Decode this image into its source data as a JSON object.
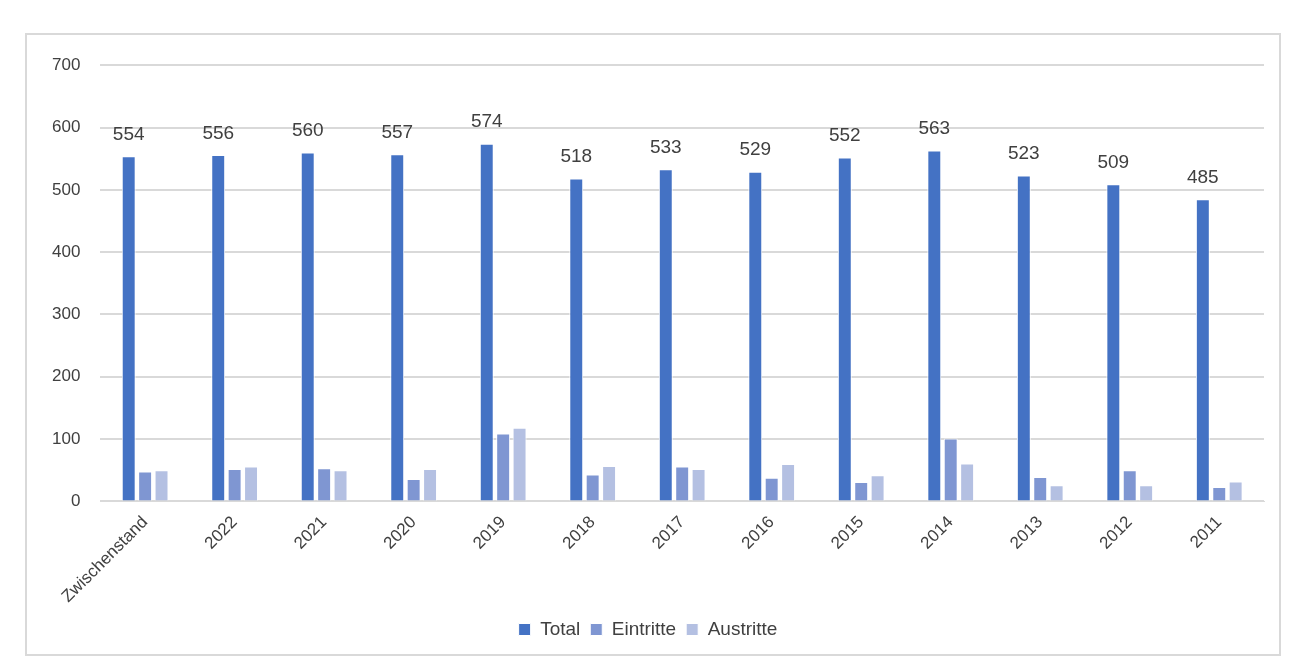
{
  "chart_data": {
    "type": "bar",
    "categories": [
      "Zwischenstand",
      "2022",
      "2021",
      "2020",
      "2019",
      "2018",
      "2017",
      "2016",
      "2015",
      "2014",
      "2013",
      "2012",
      "2011"
    ],
    "series": [
      {
        "name": "Total",
        "color": "#4472c4",
        "values": [
          554,
          556,
          560,
          557,
          574,
          518,
          533,
          529,
          552,
          563,
          523,
          509,
          485
        ],
        "value_labels": [
          "554",
          "556",
          "560",
          "557",
          "574",
          "518",
          "533",
          "529",
          "552",
          "563",
          "523",
          "509",
          "485"
        ]
      },
      {
        "name": "Eintritte",
        "color": "#7f96d2",
        "values": [
          48,
          52,
          53,
          36,
          109,
          43,
          56,
          38,
          31,
          101,
          39,
          50,
          23
        ]
      },
      {
        "name": "Austritte",
        "color": "#b4c0e2",
        "values": [
          50,
          56,
          50,
          52,
          118,
          57,
          52,
          60,
          42,
          61,
          26,
          26,
          32
        ]
      }
    ],
    "ylim": [
      0,
      700
    ],
    "yticks": [
      0,
      100,
      200,
      300,
      400,
      500,
      600,
      700
    ],
    "grid": "y",
    "legend": "bottom"
  }
}
